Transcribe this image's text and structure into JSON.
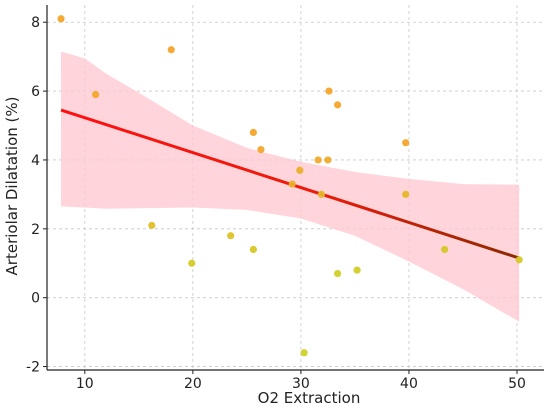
{
  "chart_data": {
    "type": "scatter",
    "title": "",
    "xlabel": "O2 Extraction",
    "ylabel": "Arteriolar Dilatation (%)",
    "xlim": [
      6.5,
      52.5
    ],
    "ylim": [
      -2.1,
      8.5
    ],
    "x_ticks": [
      10,
      20,
      30,
      40,
      50
    ],
    "y_ticks": [
      -2,
      0,
      2,
      4,
      6,
      8
    ],
    "grid": true,
    "points": [
      {
        "x": 7.8,
        "y": 8.1
      },
      {
        "x": 11.0,
        "y": 5.9
      },
      {
        "x": 18.0,
        "y": 7.2
      },
      {
        "x": 16.2,
        "y": 2.1
      },
      {
        "x": 19.9,
        "y": 1.0
      },
      {
        "x": 23.5,
        "y": 1.8
      },
      {
        "x": 25.6,
        "y": 4.8
      },
      {
        "x": 25.6,
        "y": 1.4
      },
      {
        "x": 26.3,
        "y": 4.3
      },
      {
        "x": 29.2,
        "y": 3.3
      },
      {
        "x": 29.9,
        "y": 3.7
      },
      {
        "x": 30.3,
        "y": -1.6
      },
      {
        "x": 31.6,
        "y": 4.0
      },
      {
        "x": 31.9,
        "y": 3.0
      },
      {
        "x": 32.6,
        "y": 6.0
      },
      {
        "x": 32.5,
        "y": 4.0
      },
      {
        "x": 33.4,
        "y": 5.6
      },
      {
        "x": 33.4,
        "y": 0.7
      },
      {
        "x": 35.2,
        "y": 0.8
      },
      {
        "x": 39.7,
        "y": 4.5
      },
      {
        "x": 39.7,
        "y": 3.0
      },
      {
        "x": 43.3,
        "y": 1.4
      },
      {
        "x": 50.2,
        "y": 1.1
      }
    ],
    "regression": {
      "x": [
        7.8,
        50.2
      ],
      "y": [
        5.45,
        1.15
      ]
    },
    "confidence_band": {
      "x": [
        7.8,
        10,
        12,
        15,
        20,
        25,
        30,
        35,
        40,
        45,
        50.2
      ],
      "upper": [
        7.15,
        6.95,
        6.5,
        5.95,
        5.0,
        4.35,
        3.95,
        3.65,
        3.45,
        3.3,
        3.28
      ],
      "lower": [
        2.65,
        2.62,
        2.58,
        2.6,
        2.62,
        2.55,
        2.3,
        1.8,
        1.05,
        0.25,
        -0.7
      ]
    },
    "colors": {
      "points_high": "#f4a52a",
      "points_low": "#cfd126",
      "line_start": "#ff1010",
      "line_end": "#8a2a00",
      "band": "#ffc8d0",
      "grid": "#c8c8c8"
    }
  }
}
